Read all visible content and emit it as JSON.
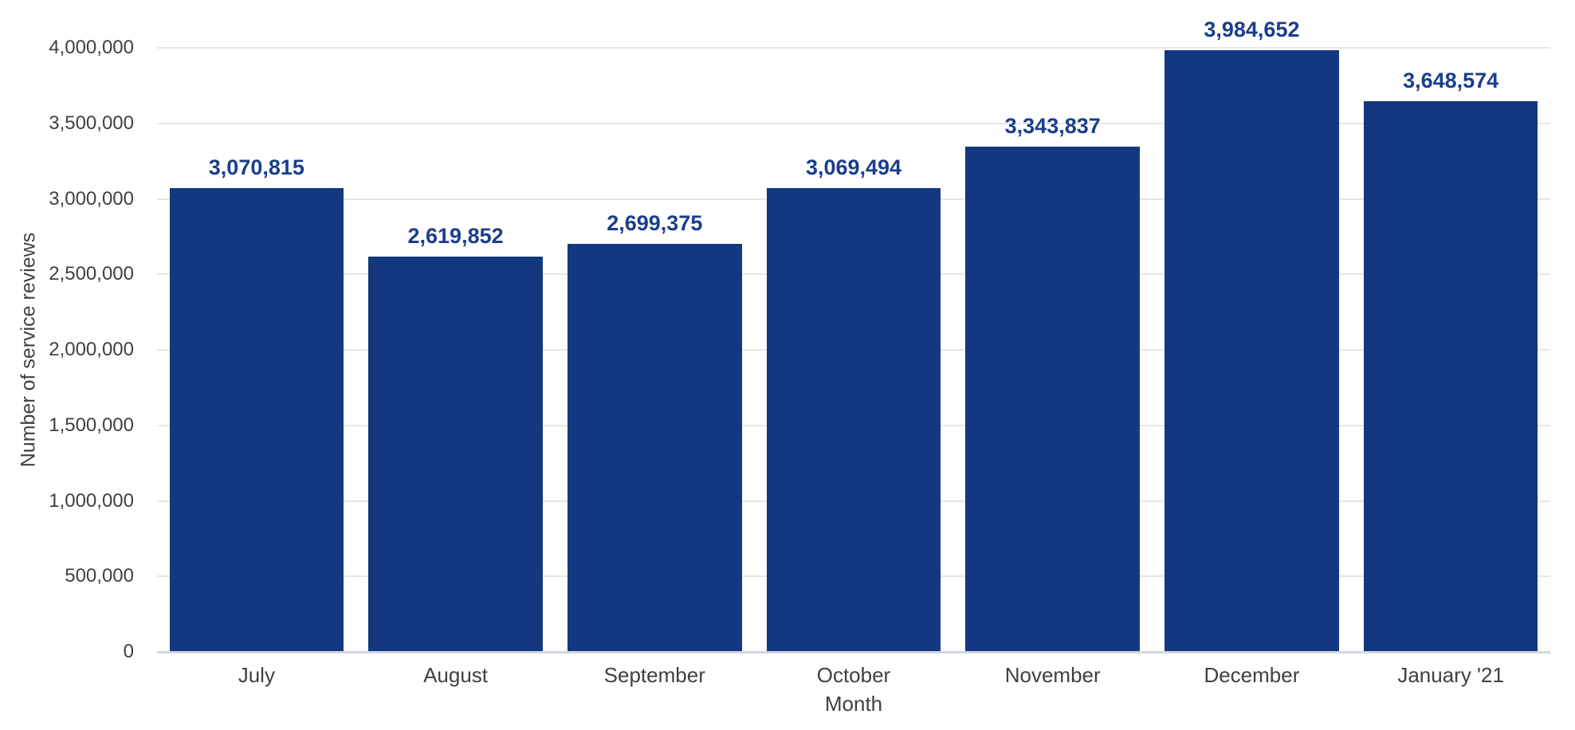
{
  "chart_data": {
    "type": "bar",
    "categories": [
      "July",
      "August",
      "September",
      "October",
      "November",
      "December",
      "January '21"
    ],
    "values": [
      3070815,
      2619852,
      2699375,
      3069494,
      3343837,
      3984652,
      3648574
    ],
    "value_labels": [
      "3,070,815",
      "2,619,852",
      "2,699,375",
      "3,069,494",
      "3,343,837",
      "3,984,652",
      "3,648,574"
    ],
    "xlabel": "Month",
    "ylabel": "Number of service reviews",
    "ylim": [
      0,
      4000000
    ],
    "ytick_step": 500000,
    "ytick_labels": [
      "0",
      "500,000",
      "1,000,000",
      "1,500,000",
      "2,000,000",
      "2,500,000",
      "3,000,000",
      "3,500,000",
      "4,000,000"
    ],
    "grid": "horizontal-only",
    "legend": "none",
    "colors": {
      "bar": "#14387F",
      "value_label": "#1A3E8C",
      "axis_text": "#404040",
      "gridline": "#E6E6E6",
      "baseline": "#D3D7DF",
      "background": "#FFFFFF"
    }
  }
}
